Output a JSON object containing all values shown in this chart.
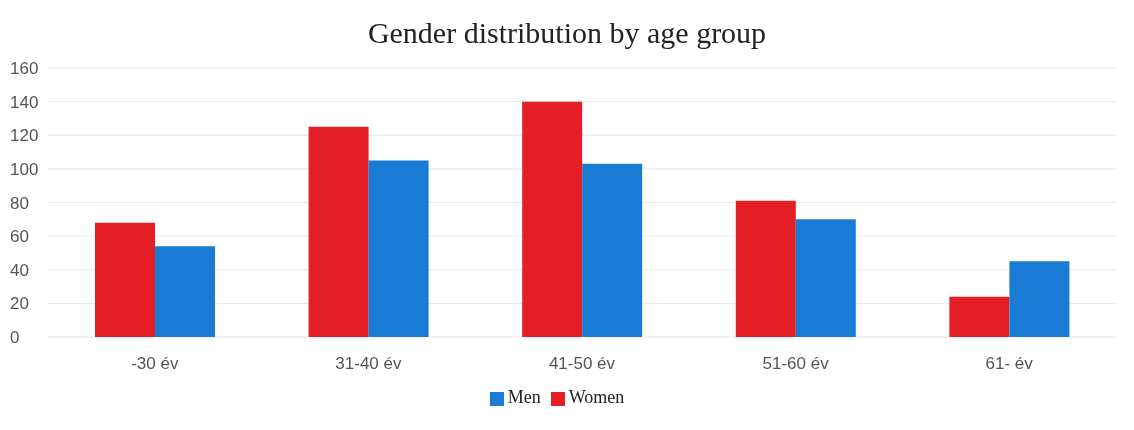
{
  "chart_data": {
    "type": "bar",
    "title": "Gender distribution by age group",
    "categories": [
      "-30 év",
      "31-40 év",
      "41-50 év",
      "51-60 év",
      "61- év"
    ],
    "series": [
      {
        "name": "Women",
        "color": "#e31e24",
        "values": [
          68,
          125,
          140,
          81,
          24
        ]
      },
      {
        "name": "Men",
        "color": "#1a7bd4",
        "values": [
          54,
          105,
          103,
          70,
          45
        ]
      }
    ],
    "ylim": [
      0,
      160
    ],
    "yticks": [
      0,
      20,
      40,
      60,
      80,
      100,
      120,
      140,
      160
    ],
    "grid": "y",
    "legend": "bottom"
  }
}
